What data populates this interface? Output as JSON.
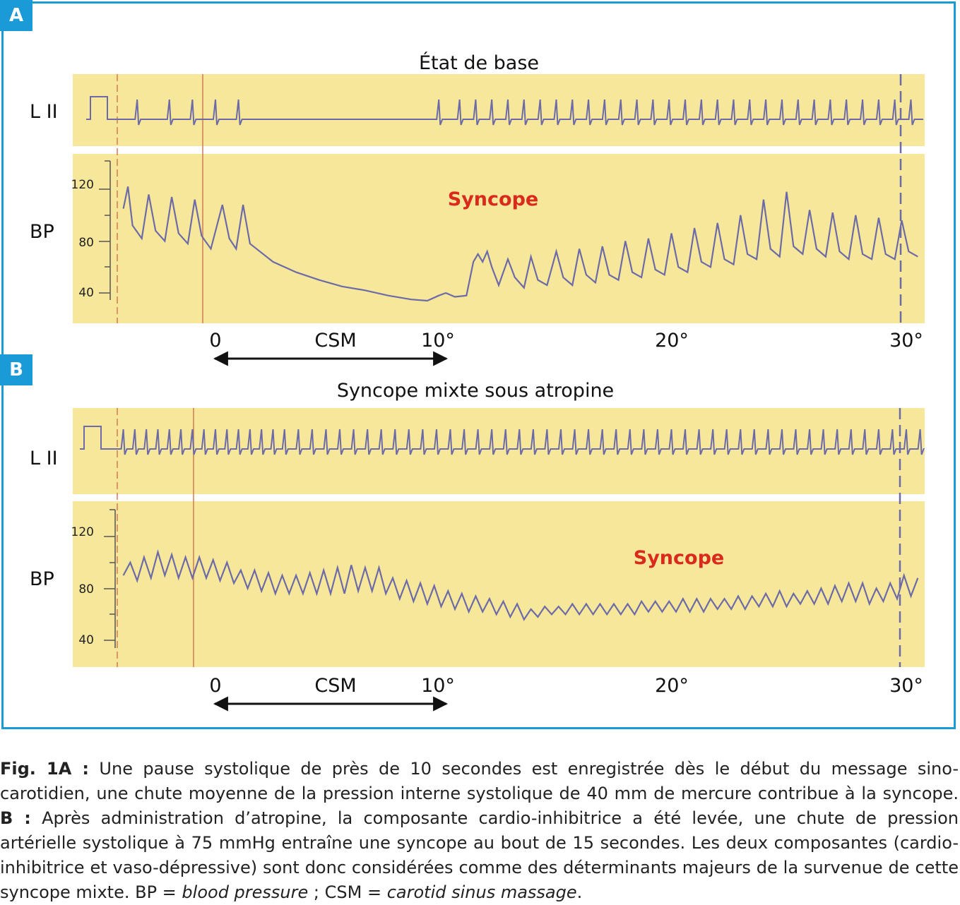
{
  "colors": {
    "frame": "#1a9bd7",
    "strip_bg": "#f7e79b",
    "trace": "#6d6ba7",
    "marker": "#d27a55",
    "syncope": "#d92a1c"
  },
  "panels": [
    {
      "badge": "A",
      "title": "État de base",
      "ecg_label": "L II",
      "bp_label": "BP",
      "bp_ticks": [
        "120",
        "80",
        "40"
      ],
      "syncope_label": "Syncope",
      "x_ticks": [
        "0",
        "10°",
        "20°",
        "30°"
      ],
      "csm_label": "CSM"
    },
    {
      "badge": "B",
      "title": "Syncope mixte sous atropine",
      "ecg_label": "L II",
      "bp_label": "BP",
      "bp_ticks": [
        "120",
        "80",
        "40"
      ],
      "syncope_label": "Syncope",
      "x_ticks": [
        "0",
        "10°",
        "20°",
        "30°"
      ],
      "csm_label": "CSM"
    }
  ],
  "caption": {
    "a_label": "Fig. 1A :",
    "a_text": " Une pause systolique de près de 10 secondes est enregistrée dès le début du message sino-carotidien, une chute moyenne de la pression interne systolique de 40 mm de mercure contribue à la syncope. ",
    "b_label": "B :",
    "b_text": " Après administration d’atropine, la composante cardio-inhibitrice a été levée, une chute de pression artérielle systolique à 75 mmHg entraîne une syncope au bout de 15 secondes. Les deux composantes (cardio-inhibitrice et vaso-dépressive) sont donc considérées comme des déterminants majeurs de la survenue de cette syncope mixte. BP = ",
    "bp_term": "blood pressure",
    "sep": " ; CSM = ",
    "csm_term": "carotid sinus massage",
    "end": "."
  },
  "chart_data": [
    {
      "type": "line",
      "panel": "A",
      "title": "État de base",
      "x_unit": "seconds",
      "x_ticks": [
        0,
        10,
        20,
        30
      ],
      "csm_interval": [
        0,
        10
      ],
      "ecg": {
        "name": "L II",
        "beats_s": [
          -3.4,
          -2.0,
          -1.0,
          0.0,
          1.0,
          9.7,
          10.6,
          11.3,
          12.0,
          12.7,
          13.4,
          14.1,
          14.8,
          15.5,
          16.2,
          16.9,
          17.6,
          18.3,
          19.0,
          19.7,
          20.4,
          21.1,
          21.8,
          22.5,
          23.2,
          23.9,
          24.6,
          25.3,
          26.0,
          26.7,
          27.4,
          28.1,
          28.8,
          29.5,
          30.2,
          30.9
        ]
      },
      "bp": {
        "name": "BP",
        "ylim": [
          30,
          135
        ],
        "points": [
          [
            -4.0,
            105
          ],
          [
            -3.8,
            122
          ],
          [
            -3.6,
            92
          ],
          [
            -3.2,
            82
          ],
          [
            -2.9,
            116
          ],
          [
            -2.6,
            88
          ],
          [
            -2.2,
            80
          ],
          [
            -1.9,
            114
          ],
          [
            -1.6,
            86
          ],
          [
            -1.2,
            78
          ],
          [
            -0.9,
            112
          ],
          [
            -0.6,
            84
          ],
          [
            -0.2,
            74
          ],
          [
            0.3,
            108
          ],
          [
            0.6,
            82
          ],
          [
            0.9,
            74
          ],
          [
            1.2,
            108
          ],
          [
            1.5,
            78
          ],
          [
            2.5,
            64
          ],
          [
            3.5,
            56
          ],
          [
            4.5,
            50
          ],
          [
            5.5,
            45
          ],
          [
            6.5,
            42
          ],
          [
            7.5,
            38
          ],
          [
            8.5,
            35
          ],
          [
            9.2,
            34
          ],
          [
            9.7,
            38
          ],
          [
            10.0,
            40
          ],
          [
            10.4,
            37
          ],
          [
            10.9,
            38
          ],
          [
            11.2,
            64
          ],
          [
            11.4,
            70
          ],
          [
            11.6,
            64
          ],
          [
            11.8,
            72
          ],
          [
            12.0,
            60
          ],
          [
            12.3,
            46
          ],
          [
            12.7,
            66
          ],
          [
            13.0,
            52
          ],
          [
            13.4,
            44
          ],
          [
            13.7,
            68
          ],
          [
            14.0,
            50
          ],
          [
            14.4,
            46
          ],
          [
            14.8,
            72
          ],
          [
            15.1,
            52
          ],
          [
            15.5,
            46
          ],
          [
            15.8,
            74
          ],
          [
            16.1,
            54
          ],
          [
            16.5,
            48
          ],
          [
            16.8,
            76
          ],
          [
            17.1,
            54
          ],
          [
            17.5,
            50
          ],
          [
            17.8,
            80
          ],
          [
            18.1,
            56
          ],
          [
            18.5,
            52
          ],
          [
            18.8,
            82
          ],
          [
            19.1,
            58
          ],
          [
            19.5,
            54
          ],
          [
            19.8,
            86
          ],
          [
            20.1,
            60
          ],
          [
            20.5,
            56
          ],
          [
            20.8,
            90
          ],
          [
            21.1,
            64
          ],
          [
            21.5,
            60
          ],
          [
            21.8,
            94
          ],
          [
            22.1,
            66
          ],
          [
            22.5,
            62
          ],
          [
            22.8,
            100
          ],
          [
            23.1,
            70
          ],
          [
            23.5,
            66
          ],
          [
            23.8,
            112
          ],
          [
            24.1,
            74
          ],
          [
            24.5,
            68
          ],
          [
            24.8,
            118
          ],
          [
            25.1,
            76
          ],
          [
            25.5,
            70
          ],
          [
            25.8,
            104
          ],
          [
            26.1,
            74
          ],
          [
            26.5,
            68
          ],
          [
            26.8,
            102
          ],
          [
            27.1,
            72
          ],
          [
            27.5,
            66
          ],
          [
            27.8,
            100
          ],
          [
            28.1,
            70
          ],
          [
            28.5,
            66
          ],
          [
            28.8,
            98
          ],
          [
            29.1,
            70
          ],
          [
            29.5,
            66
          ],
          [
            29.8,
            96
          ],
          [
            30.1,
            72
          ],
          [
            30.5,
            68
          ],
          [
            30.8,
            96
          ],
          [
            31.1,
            70
          ]
        ]
      }
    },
    {
      "type": "line",
      "panel": "B",
      "title": "Syncope mixte sous atropine",
      "x_unit": "seconds",
      "x_ticks": [
        0,
        10,
        20,
        30
      ],
      "csm_interval": [
        0,
        10
      ],
      "ecg": {
        "name": "L II",
        "beats_s": [
          -4.0,
          -3.5,
          -3.0,
          -2.5,
          -2.0,
          -1.5,
          -1.0,
          -0.5,
          0.0,
          0.5,
          1.0,
          1.5,
          2.0,
          2.5,
          3.0,
          3.6,
          4.2,
          4.8,
          5.4,
          6.0,
          6.6,
          7.2,
          7.8,
          8.4,
          9.0,
          9.6,
          10.2,
          10.8,
          11.4,
          12.0,
          12.6,
          13.2,
          13.8,
          14.4,
          15.0,
          15.6,
          16.2,
          16.8,
          17.4,
          18.0,
          18.6,
          19.2,
          19.8,
          20.4,
          21.0,
          21.6,
          22.2,
          22.8,
          23.4,
          24.0,
          24.6,
          25.2,
          25.8,
          26.4,
          27.0,
          27.6,
          28.2,
          28.8,
          29.4,
          30.0,
          30.6
        ]
      },
      "bp": {
        "name": "BP",
        "ylim": [
          30,
          135
        ],
        "points": [
          [
            -4.0,
            90
          ],
          [
            -3.7,
            100
          ],
          [
            -3.4,
            86
          ],
          [
            -3.1,
            104
          ],
          [
            -2.8,
            88
          ],
          [
            -2.5,
            108
          ],
          [
            -2.2,
            90
          ],
          [
            -1.9,
            106
          ],
          [
            -1.6,
            88
          ],
          [
            -1.3,
            104
          ],
          [
            -1.0,
            88
          ],
          [
            -0.7,
            104
          ],
          [
            -0.4,
            88
          ],
          [
            -0.1,
            102
          ],
          [
            0.2,
            86
          ],
          [
            0.5,
            100
          ],
          [
            0.8,
            84
          ],
          [
            1.1,
            94
          ],
          [
            1.4,
            80
          ],
          [
            1.7,
            94
          ],
          [
            2.0,
            78
          ],
          [
            2.3,
            92
          ],
          [
            2.6,
            76
          ],
          [
            2.9,
            90
          ],
          [
            3.2,
            76
          ],
          [
            3.5,
            90
          ],
          [
            3.8,
            76
          ],
          [
            4.1,
            92
          ],
          [
            4.4,
            76
          ],
          [
            4.7,
            94
          ],
          [
            5.0,
            76
          ],
          [
            5.3,
            96
          ],
          [
            5.6,
            76
          ],
          [
            5.9,
            98
          ],
          [
            6.2,
            78
          ],
          [
            6.5,
            96
          ],
          [
            6.8,
            78
          ],
          [
            7.1,
            96
          ],
          [
            7.4,
            76
          ],
          [
            7.7,
            88
          ],
          [
            8.0,
            72
          ],
          [
            8.3,
            86
          ],
          [
            8.6,
            70
          ],
          [
            8.9,
            84
          ],
          [
            9.2,
            68
          ],
          [
            9.5,
            82
          ],
          [
            9.8,
            66
          ],
          [
            10.1,
            78
          ],
          [
            10.4,
            64
          ],
          [
            10.7,
            76
          ],
          [
            11.0,
            62
          ],
          [
            11.3,
            74
          ],
          [
            11.6,
            62
          ],
          [
            11.9,
            72
          ],
          [
            12.2,
            60
          ],
          [
            12.5,
            70
          ],
          [
            12.8,
            58
          ],
          [
            13.1,
            68
          ],
          [
            13.4,
            56
          ],
          [
            13.7,
            64
          ],
          [
            14.0,
            58
          ],
          [
            14.3,
            66
          ],
          [
            14.6,
            60
          ],
          [
            14.9,
            66
          ],
          [
            15.2,
            60
          ],
          [
            15.5,
            68
          ],
          [
            15.8,
            60
          ],
          [
            16.1,
            68
          ],
          [
            16.4,
            60
          ],
          [
            16.7,
            68
          ],
          [
            17.0,
            60
          ],
          [
            17.3,
            68
          ],
          [
            17.6,
            60
          ],
          [
            17.9,
            68
          ],
          [
            18.2,
            60
          ],
          [
            18.5,
            70
          ],
          [
            18.8,
            62
          ],
          [
            19.1,
            70
          ],
          [
            19.4,
            62
          ],
          [
            19.7,
            70
          ],
          [
            20.0,
            62
          ],
          [
            20.3,
            72
          ],
          [
            20.6,
            62
          ],
          [
            20.9,
            72
          ],
          [
            21.2,
            62
          ],
          [
            21.5,
            72
          ],
          [
            21.8,
            64
          ],
          [
            22.1,
            72
          ],
          [
            22.4,
            64
          ],
          [
            22.7,
            74
          ],
          [
            23.0,
            64
          ],
          [
            23.3,
            74
          ],
          [
            23.6,
            66
          ],
          [
            23.9,
            76
          ],
          [
            24.2,
            66
          ],
          [
            24.5,
            78
          ],
          [
            24.8,
            66
          ],
          [
            25.1,
            76
          ],
          [
            25.4,
            68
          ],
          [
            25.7,
            78
          ],
          [
            26.0,
            68
          ],
          [
            26.3,
            80
          ],
          [
            26.6,
            68
          ],
          [
            26.9,
            82
          ],
          [
            27.2,
            70
          ],
          [
            27.5,
            84
          ],
          [
            27.8,
            70
          ],
          [
            28.1,
            84
          ],
          [
            28.4,
            68
          ],
          [
            28.7,
            80
          ],
          [
            29.0,
            70
          ],
          [
            29.3,
            84
          ],
          [
            29.6,
            72
          ],
          [
            29.9,
            90
          ],
          [
            30.2,
            74
          ],
          [
            30.5,
            88
          ],
          [
            30.8,
            78
          ],
          [
            31.0,
            92
          ]
        ]
      }
    }
  ]
}
